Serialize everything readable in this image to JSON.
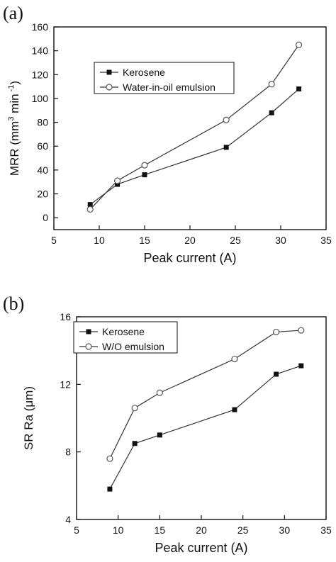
{
  "chart_data": [
    {
      "panel_label": "(a)",
      "type": "line",
      "xlabel": "Peak current (A)",
      "ylabel_main": "MRR (mm",
      "ylabel_sup1": "3",
      "ylabel_mid": " min",
      "ylabel_sup2": " -1",
      "ylabel_end": ")",
      "xlim": [
        5,
        35
      ],
      "ylim": [
        -10,
        160
      ],
      "xticks": [
        "5",
        "10",
        "15",
        "20",
        "25",
        "30",
        "35"
      ],
      "yticks": [
        "0",
        "20",
        "40",
        "60",
        "80",
        "100",
        "120",
        "140",
        "160"
      ],
      "grid": false,
      "legend_position": "top-left",
      "series": [
        {
          "name": "Kerosene",
          "marker": "filled-square",
          "x": [
            9,
            12,
            15,
            24,
            29,
            32
          ],
          "y": [
            11,
            28,
            36,
            59,
            88,
            108
          ]
        },
        {
          "name": "Water-in-oil emulsion",
          "marker": "open-circle",
          "x": [
            9,
            12,
            15,
            24,
            29,
            32
          ],
          "y": [
            7,
            31,
            44,
            82,
            112,
            145
          ]
        }
      ]
    },
    {
      "panel_label": "(b)",
      "type": "line",
      "xlabel": "Peak current (A)",
      "ylabel": "SR  Ra (μm)",
      "xlim": [
        5,
        35
      ],
      "ylim": [
        4,
        16
      ],
      "xticks": [
        "5",
        "10",
        "15",
        "20",
        "25",
        "30",
        "35"
      ],
      "yticks": [
        "4",
        "8",
        "12",
        "16"
      ],
      "grid": false,
      "legend_position": "top-left",
      "series": [
        {
          "name": "Kerosene",
          "marker": "filled-square",
          "x": [
            9,
            12,
            15,
            24,
            29,
            32
          ],
          "y": [
            5.8,
            8.5,
            9.0,
            10.5,
            12.6,
            13.1
          ]
        },
        {
          "name": "W/O emulsion",
          "marker": "open-circle",
          "x": [
            9,
            12,
            15,
            24,
            29,
            32
          ],
          "y": [
            7.6,
            10.6,
            11.5,
            13.5,
            15.1,
            15.2
          ]
        }
      ]
    }
  ]
}
